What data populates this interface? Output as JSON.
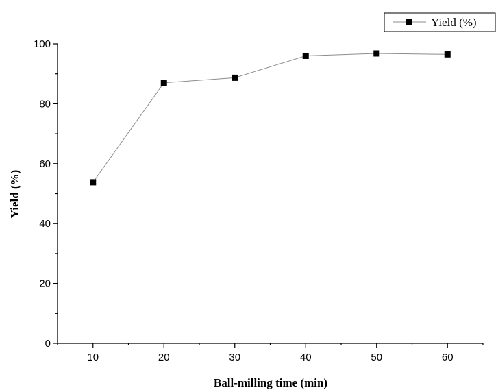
{
  "chart_data": {
    "type": "line",
    "title": "",
    "xlabel": "Ball-milling time (min)",
    "ylabel": "Yield (%)",
    "x": [
      10,
      20,
      30,
      40,
      50,
      60
    ],
    "xlim": [
      5,
      65
    ],
    "ylim": [
      0,
      100
    ],
    "xticks": [
      "10",
      "20",
      "30",
      "40",
      "50",
      "60"
    ],
    "yticks": [
      "0",
      "20",
      "40",
      "60",
      "80",
      "100"
    ],
    "series": [
      {
        "name": "Yield (%)",
        "values": [
          53.8,
          87.0,
          88.7,
          96.0,
          96.8,
          96.5
        ],
        "marker": "square",
        "line_color": "#8c8c8c",
        "marker_color": "#000000"
      }
    ],
    "grid": false,
    "legend": {
      "position": "top-right"
    }
  }
}
